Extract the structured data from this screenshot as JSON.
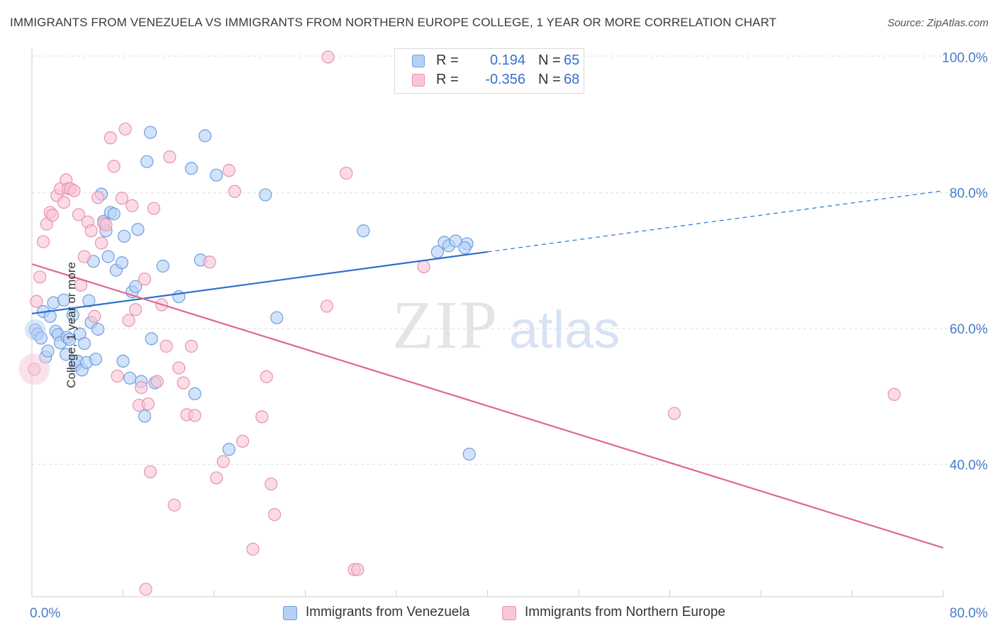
{
  "title": "IMMIGRANTS FROM VENEZUELA VS IMMIGRANTS FROM NORTHERN EUROPE COLLEGE, 1 YEAR OR MORE CORRELATION CHART",
  "source": "Source: ZipAtlas.com",
  "watermark": {
    "zip": "ZIP",
    "atlas": "atlas"
  },
  "legend": {
    "rows": [
      {
        "r_label": "R =",
        "r_value": "0.194",
        "n_label": "N =",
        "n_value": "65"
      },
      {
        "r_label": "R =",
        "r_value": "-0.356",
        "n_label": "N =",
        "n_value": "68"
      }
    ]
  },
  "bottom_legend": {
    "items": [
      {
        "label": "Immigrants from Venezuela"
      },
      {
        "label": "Immigrants from Northern Europe"
      }
    ]
  },
  "colors": {
    "venezuela_fill": "#b6d0f5",
    "venezuela_stroke": "#6f9fde",
    "venezuela_line": "#2f6fd0",
    "northern_europe_fill": "#f8c6d6",
    "northern_europe_stroke": "#e891ae",
    "northern_europe_line": "#e0668f",
    "tick_text": "#4a7cc9",
    "grid": "#dedede"
  },
  "chart_data": {
    "type": "scatter",
    "title": "IMMIGRANTS FROM VENEZUELA VS IMMIGRANTS FROM NORTHERN EUROPE COLLEGE, 1 YEAR OR MORE CORRELATION CHART",
    "xlabel": "",
    "ylabel": "College, 1 year or more",
    "xlim": [
      0,
      80
    ],
    "ylim": [
      20,
      102
    ],
    "x_tick_labels": [
      "0.0%",
      "80.0%"
    ],
    "y_tick_values": [
      40,
      60,
      80,
      100
    ],
    "y_tick_labels": [
      "40.0%",
      "60.0%",
      "80.0%",
      "100.0%"
    ],
    "grid": true,
    "series": [
      {
        "name": "Immigrants from Venezuela",
        "R": 0.194,
        "N": 65,
        "trend": {
          "x0": 0,
          "y0": 62.2,
          "x1": 40,
          "y1": 71.3,
          "dashed_to_x": 80,
          "dashed_to_y": 80.3
        },
        "points": [
          [
            0.3,
            59.8
          ],
          [
            0.5,
            59.2
          ],
          [
            0.8,
            58.6
          ],
          [
            1.0,
            62.5
          ],
          [
            1.2,
            55.8
          ],
          [
            1.4,
            56.7
          ],
          [
            1.6,
            61.8
          ],
          [
            1.9,
            63.8
          ],
          [
            2.1,
            59.6
          ],
          [
            2.3,
            59.1
          ],
          [
            2.5,
            57.9
          ],
          [
            2.8,
            64.2
          ],
          [
            3.0,
            56.2
          ],
          [
            3.1,
            58.7
          ],
          [
            3.3,
            58.4
          ],
          [
            3.6,
            62.0
          ],
          [
            3.8,
            54.6
          ],
          [
            4.0,
            55.2
          ],
          [
            4.2,
            59.2
          ],
          [
            4.4,
            53.9
          ],
          [
            4.6,
            57.8
          ],
          [
            4.8,
            55.0
          ],
          [
            5.0,
            64.1
          ],
          [
            5.2,
            60.9
          ],
          [
            5.4,
            69.9
          ],
          [
            5.6,
            55.5
          ],
          [
            5.8,
            59.9
          ],
          [
            6.1,
            79.8
          ],
          [
            6.3,
            75.8
          ],
          [
            6.5,
            74.4
          ],
          [
            6.7,
            70.6
          ],
          [
            6.9,
            77.1
          ],
          [
            7.2,
            76.9
          ],
          [
            7.4,
            68.6
          ],
          [
            7.9,
            69.7
          ],
          [
            8.0,
            55.2
          ],
          [
            8.1,
            73.6
          ],
          [
            8.6,
            52.7
          ],
          [
            8.8,
            65.4
          ],
          [
            9.1,
            66.2
          ],
          [
            9.3,
            74.6
          ],
          [
            9.6,
            52.2
          ],
          [
            9.9,
            47.1
          ],
          [
            10.1,
            84.6
          ],
          [
            10.4,
            88.9
          ],
          [
            10.5,
            58.5
          ],
          [
            10.8,
            52.0
          ],
          [
            11.5,
            69.2
          ],
          [
            12.9,
            64.7
          ],
          [
            14.0,
            83.6
          ],
          [
            14.3,
            50.4
          ],
          [
            14.8,
            70.1
          ],
          [
            15.2,
            88.4
          ],
          [
            16.2,
            82.6
          ],
          [
            17.3,
            42.2
          ],
          [
            20.5,
            79.7
          ],
          [
            21.5,
            61.6
          ],
          [
            29.1,
            74.4
          ],
          [
            35.6,
            71.3
          ],
          [
            36.2,
            72.7
          ],
          [
            36.6,
            72.2
          ],
          [
            37.2,
            72.9
          ],
          [
            38.2,
            72.5
          ],
          [
            38.0,
            71.9
          ],
          [
            38.4,
            41.5
          ]
        ]
      },
      {
        "name": "Immigrants from Northern Europe",
        "R": -0.356,
        "N": 68,
        "trend": {
          "x0": 0,
          "y0": 69.5,
          "x1": 80,
          "y1": 27.7
        },
        "points": [
          [
            0.2,
            54.0
          ],
          [
            0.4,
            64.0
          ],
          [
            0.7,
            67.6
          ],
          [
            1.0,
            72.8
          ],
          [
            1.3,
            75.4
          ],
          [
            1.6,
            77.1
          ],
          [
            1.8,
            76.7
          ],
          [
            2.2,
            79.6
          ],
          [
            2.5,
            80.6
          ],
          [
            2.8,
            78.6
          ],
          [
            3.0,
            81.9
          ],
          [
            3.2,
            80.6
          ],
          [
            3.4,
            80.6
          ],
          [
            3.7,
            80.3
          ],
          [
            4.1,
            76.8
          ],
          [
            4.3,
            66.4
          ],
          [
            4.6,
            70.6
          ],
          [
            4.9,
            75.7
          ],
          [
            5.2,
            74.4
          ],
          [
            5.5,
            61.8
          ],
          [
            5.8,
            79.3
          ],
          [
            6.1,
            72.6
          ],
          [
            6.3,
            75.5
          ],
          [
            6.5,
            75.3
          ],
          [
            6.9,
            88.1
          ],
          [
            7.2,
            83.9
          ],
          [
            7.5,
            53.0
          ],
          [
            7.9,
            79.2
          ],
          [
            8.2,
            89.4
          ],
          [
            8.5,
            61.2
          ],
          [
            8.8,
            78.1
          ],
          [
            9.1,
            62.8
          ],
          [
            9.4,
            48.7
          ],
          [
            9.6,
            51.3
          ],
          [
            9.9,
            67.3
          ],
          [
            10.2,
            48.9
          ],
          [
            10.4,
            38.9
          ],
          [
            10.7,
            77.7
          ],
          [
            11.0,
            52.2
          ],
          [
            11.4,
            63.5
          ],
          [
            11.8,
            57.4
          ],
          [
            12.1,
            85.3
          ],
          [
            12.5,
            34.0
          ],
          [
            12.9,
            54.2
          ],
          [
            13.3,
            52.0
          ],
          [
            13.6,
            47.3
          ],
          [
            14.0,
            57.4
          ],
          [
            14.3,
            47.2
          ],
          [
            15.6,
            69.8
          ],
          [
            16.2,
            38.0
          ],
          [
            16.8,
            40.4
          ],
          [
            17.3,
            83.3
          ],
          [
            17.8,
            80.2
          ],
          [
            18.5,
            43.4
          ],
          [
            19.4,
            27.5
          ],
          [
            20.2,
            47.0
          ],
          [
            20.6,
            52.9
          ],
          [
            21.0,
            37.1
          ],
          [
            21.3,
            32.6
          ],
          [
            25.9,
            63.3
          ],
          [
            26.0,
            100.0
          ],
          [
            27.6,
            82.9
          ],
          [
            28.3,
            24.5
          ],
          [
            28.6,
            24.5
          ],
          [
            34.4,
            69.1
          ],
          [
            56.4,
            47.5
          ],
          [
            75.7,
            50.3
          ],
          [
            10.0,
            21.6
          ]
        ]
      }
    ]
  }
}
